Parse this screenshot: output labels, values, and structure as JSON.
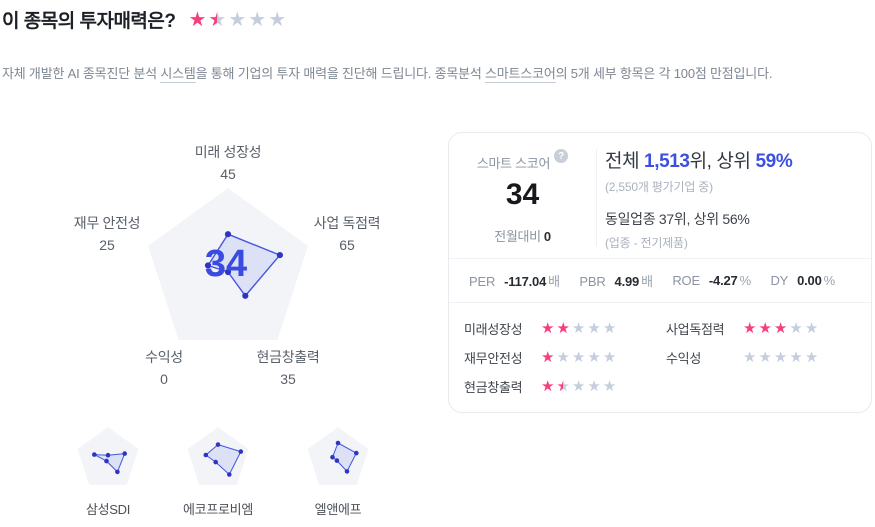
{
  "accent_colors": {
    "pink": "#f5407b",
    "star_gray": "#c6cede",
    "blue": "#3b4fe0",
    "radar_bg": "#f2f4f8",
    "radar_stroke": "#4553e2",
    "radar_dot": "#2e36c0"
  },
  "header": {
    "title": "이 종목의 투자매력은?",
    "rating": 1.5
  },
  "description": {
    "seg1": "자체 개발한 AI 종목진단 분석 ",
    "term1": "시스템",
    "seg2": "을 통해 기업의 투자 매력을 진단해 드립니다. 종목분석 ",
    "term2": "스마트스코어",
    "seg3": "의 5개 세부 항목은 각 100점 만점입니다."
  },
  "radar": {
    "type": "radar",
    "center_score": "34",
    "max": 100,
    "axes": [
      {
        "label": "미래 성장성",
        "value": 45
      },
      {
        "label": "사업 독점력",
        "value": 65
      },
      {
        "label": "현금창출력",
        "value": 35
      },
      {
        "label": "수익성",
        "value": 0
      },
      {
        "label": "재무 안전성",
        "value": 25
      }
    ]
  },
  "score_card": {
    "score_label": "스마트 스코어",
    "help_icon": "question-mark",
    "score_value": "34",
    "mom_label": "전월대비",
    "mom_value": "0",
    "rank": {
      "prefix": "전체 ",
      "value": "1,513",
      "mid": "위, 상위 ",
      "percent": "59%",
      "sub": "(2,550개 평가기업 중)",
      "industry_line": "동일업종 37위, 상위 56%",
      "industry_sub": "(업종 - 전기제품)"
    },
    "metrics": [
      {
        "label": "PER",
        "value": "-117.04",
        "unit": "배"
      },
      {
        "label": "PBR",
        "value": "4.99",
        "unit": "배"
      },
      {
        "label": "ROE",
        "value": "-4.27",
        "unit": "%"
      },
      {
        "label": "DY",
        "value": "0.00",
        "unit": "%"
      }
    ],
    "ratings": [
      {
        "label": "미래성장성",
        "stars": 2
      },
      {
        "label": "사업독점력",
        "stars": 3
      },
      {
        "label": "재무안전성",
        "stars": 1
      },
      {
        "label": "수익성",
        "stars": 0
      },
      {
        "label": "현금창출력",
        "stars": 1.5
      }
    ]
  },
  "peers": [
    {
      "name": "삼성SDI",
      "values": [
        12,
        55,
        50,
        8,
        45
      ]
    },
    {
      "name": "에코프로비엠",
      "values": [
        45,
        75,
        60,
        12,
        40
      ]
    },
    {
      "name": "엘앤에프",
      "values": [
        50,
        60,
        48,
        6,
        18
      ]
    }
  ]
}
